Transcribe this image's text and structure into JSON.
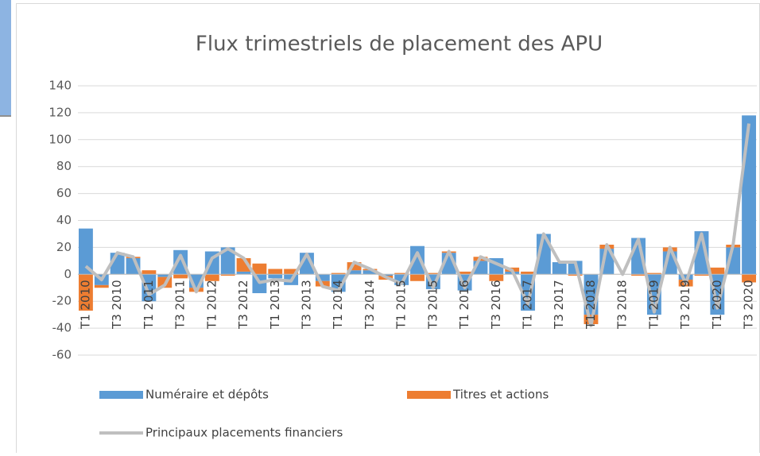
{
  "chart_data": {
    "type": "bar",
    "stacked": true,
    "title": "Flux trimestriels de placement des APU",
    "categories": [
      "T1 2010",
      null,
      "T3 2010",
      null,
      "T1 2011",
      null,
      "T3 2011",
      null,
      "T1 2012",
      null,
      "T3 2012",
      null,
      "T1 2013",
      null,
      "T3 2013",
      null,
      "T1 2014",
      null,
      "T3 2014",
      null,
      "T1 2015",
      null,
      "T3 2015",
      null,
      "T1 2016",
      null,
      "T3 2016",
      null,
      "T1 2017",
      null,
      "T3 2017",
      null,
      "T1 2018",
      null,
      "T3 2018",
      null,
      "T1 2019",
      null,
      "T3 2019",
      null,
      "T1 2020",
      null,
      "T3 2020"
    ],
    "series": [
      {
        "name": "Numéraire et dépôts",
        "color": "#5b9bd5",
        "kind": "bar",
        "values": [
          34,
          -8,
          16,
          12,
          -20,
          -2,
          18,
          -10,
          17,
          20,
          2,
          -14,
          -3,
          -8,
          16,
          -5,
          -13,
          3,
          3,
          -1,
          -8,
          21,
          -11,
          16,
          -12,
          10,
          12,
          2,
          -27,
          30,
          9,
          10,
          -30,
          19,
          0,
          27,
          -30,
          17,
          -4,
          32,
          -30,
          20,
          118
        ]
      },
      {
        "name": "Titres et actions",
        "color": "#ed7d31",
        "kind": "bar",
        "values": [
          -27,
          -2,
          0,
          1,
          3,
          -8,
          -3,
          -3,
          -5,
          -1,
          10,
          8,
          4,
          4,
          0,
          -4,
          1,
          6,
          1,
          -3,
          1,
          -5,
          1,
          1,
          2,
          3,
          -5,
          3,
          2,
          0,
          0,
          -1,
          -7,
          3,
          0,
          -1,
          1,
          3,
          -5,
          -1,
          5,
          2,
          -6
        ]
      },
      {
        "name": "Principaux placements financiers",
        "color": "#bfbfbf",
        "kind": "line",
        "values": [
          6,
          -4,
          16,
          13,
          -15,
          -8,
          14,
          -13,
          12,
          19,
          12,
          -6,
          -4,
          -5,
          15,
          -9,
          -12,
          9,
          4,
          -2,
          -7,
          16,
          -10,
          17,
          -10,
          13,
          8,
          3,
          -22,
          30,
          9,
          9,
          -38,
          22,
          0,
          26,
          -28,
          20,
          -7,
          30,
          -25,
          22,
          112
        ]
      }
    ],
    "ylim": [
      -60,
      140
    ],
    "yticks": [
      -60,
      -40,
      -20,
      0,
      20,
      40,
      60,
      80,
      100,
      120,
      140
    ],
    "grid": true
  }
}
